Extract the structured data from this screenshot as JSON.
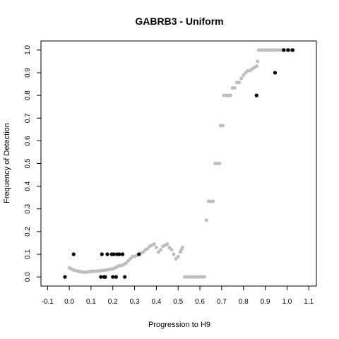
{
  "chart_data": {
    "type": "scatter",
    "title": "GABRB3 - Uniform",
    "xlabel": "Progression to H9",
    "ylabel": "Frequency of Detection",
    "xlim": [
      -0.13,
      1.135
    ],
    "ylim": [
      -0.04,
      1.04
    ],
    "xticks": [
      -0.1,
      0.0,
      0.1,
      0.2,
      0.3,
      0.4,
      0.5,
      0.6,
      0.7,
      0.8,
      0.9,
      1.0,
      1.1
    ],
    "xtick_labels": [
      "-0.1",
      "0.0",
      "0.1",
      "0.2",
      "0.3",
      "0.4",
      "0.5",
      "0.6",
      "0.7",
      "0.8",
      "0.9",
      "1.0",
      "1.1"
    ],
    "yticks": [
      0.0,
      0.1,
      0.2,
      0.3,
      0.4,
      0.5,
      0.6,
      0.7,
      0.8,
      0.9,
      1.0
    ],
    "ytick_labels": [
      "0.0",
      "0.1",
      "0.2",
      "0.3",
      "0.4",
      "0.5",
      "0.6",
      "0.7",
      "0.8",
      "0.9",
      "1.0"
    ],
    "grid": false,
    "colors": {
      "observed": "#000000",
      "uniform": "#bebebe"
    },
    "series": [
      {
        "role": "uniform-curve",
        "color": "#bebebe",
        "x": [
          0.0,
          0.01,
          0.02,
          0.03,
          0.04,
          0.05,
          0.06,
          0.07,
          0.08,
          0.09,
          0.1,
          0.11,
          0.12,
          0.13,
          0.14,
          0.15,
          0.16,
          0.17,
          0.18,
          0.19,
          0.2,
          0.21,
          0.22,
          0.23,
          0.24,
          0.25,
          0.26,
          0.27,
          0.28,
          0.29,
          0.3,
          0.31,
          0.32,
          0.33,
          0.34,
          0.35,
          0.36,
          0.37,
          0.38,
          0.39,
          0.4,
          0.41,
          0.42,
          0.43,
          0.44,
          0.45,
          0.46,
          0.47,
          0.48,
          0.49,
          0.5,
          0.51,
          0.515,
          0.52,
          0.53,
          0.54,
          0.55,
          0.56,
          0.57,
          0.58,
          0.59,
          0.6,
          0.61,
          0.62,
          0.63,
          0.64,
          0.65,
          0.66,
          0.67,
          0.68,
          0.69,
          0.695,
          0.7,
          0.705,
          0.71,
          0.72,
          0.73,
          0.74,
          0.75,
          0.76,
          0.77,
          0.78,
          0.79,
          0.8,
          0.81,
          0.82,
          0.83,
          0.84,
          0.85,
          0.86,
          0.865,
          0.87,
          0.88,
          0.89,
          0.9,
          0.91,
          0.92,
          0.93,
          0.94,
          0.95,
          0.96,
          0.97,
          0.98,
          0.99,
          1.0,
          1.01,
          1.02,
          1.03
        ],
        "y": [
          0.04,
          0.035,
          0.03,
          0.028,
          0.025,
          0.024,
          0.022,
          0.021,
          0.022,
          0.023,
          0.024,
          0.025,
          0.025,
          0.026,
          0.027,
          0.028,
          0.03,
          0.03,
          0.032,
          0.034,
          0.035,
          0.04,
          0.045,
          0.05,
          0.05,
          0.055,
          0.06,
          0.07,
          0.08,
          0.09,
          0.09,
          0.095,
          0.1,
          0.105,
          0.11,
          0.12,
          0.125,
          0.135,
          0.14,
          0.145,
          0.13,
          0.11,
          0.12,
          0.135,
          0.14,
          0.145,
          0.13,
          0.12,
          0.1,
          0.08,
          0.09,
          0.11,
          0.12,
          0.13,
          0.0,
          0.0,
          0.0,
          0.0,
          0.0,
          0.0,
          0.0,
          0.0,
          0.0,
          0.0,
          0.25,
          0.333,
          0.333,
          0.333,
          0.5,
          0.5,
          0.5,
          0.667,
          0.667,
          0.667,
          0.8,
          0.8,
          0.8,
          0.8,
          0.833,
          0.833,
          0.857,
          0.857,
          0.875,
          0.889,
          0.9,
          0.909,
          0.909,
          0.917,
          0.923,
          0.929,
          0.95,
          1.0,
          1.0,
          1.0,
          1.0,
          1.0,
          1.0,
          1.0,
          1.0,
          1.0,
          1.0,
          1.0,
          1.0,
          1.0,
          1.0,
          1.0,
          1.0,
          1.0
        ]
      },
      {
        "role": "observed",
        "color": "#000000",
        "x": [
          -0.02,
          0.02,
          0.145,
          0.15,
          0.16,
          0.165,
          0.175,
          0.195,
          0.2,
          0.205,
          0.215,
          0.22,
          0.23,
          0.245,
          0.255,
          0.32,
          0.86,
          0.945,
          0.985,
          1.005,
          1.025
        ],
        "y": [
          0.0,
          0.1,
          0.0,
          0.1,
          0.0,
          0.0,
          0.1,
          0.1,
          0.0,
          0.1,
          0.0,
          0.1,
          0.1,
          0.1,
          0.0,
          0.1,
          0.8,
          0.9,
          1.0,
          1.0,
          1.0
        ]
      }
    ]
  }
}
